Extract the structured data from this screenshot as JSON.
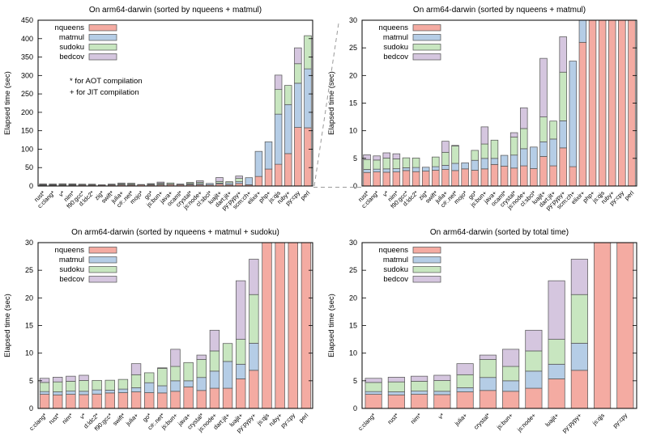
{
  "figure": {
    "ylabel": "Elapsed time (sec)",
    "note_line1": "* for AOT compilation",
    "note_line2": "+ for JIT compilation",
    "colors": {
      "nqueens": "#f4aba2",
      "matmul": "#b5cde6",
      "sudoku": "#c8e6c0",
      "bedcov": "#d5c6df",
      "bar_border": "#5a5a5a",
      "axis": "#000000",
      "connector": "#9a9a9a"
    }
  },
  "chart_data": [
    {
      "type": "bar",
      "stacked": true,
      "title": "On arm64-darwin (sorted by nqueens + matmul)",
      "ylabel": "Elapsed time (sec)",
      "ylim": [
        0,
        450
      ],
      "ytick_step": 50,
      "grid": false,
      "legend_position": "top-left",
      "show_note": true,
      "categories": [
        "rust*",
        "c:clang*",
        "v*",
        "nim*",
        "f90:gcc*",
        "d:ldc2*",
        "zig*",
        "swift*",
        "julia+",
        "c#:.net*",
        "mojo*",
        "go*",
        "js:bun+",
        "java+",
        "ocaml*",
        "crystal*",
        "js:node+",
        "cl:sbcl*",
        "luajit+",
        "dart:jit+",
        "py:pypy+",
        "scm:ch+",
        "elixir+",
        "php+",
        "js:qjs",
        "ruby+",
        "py:cpy",
        "perl"
      ],
      "series": [
        {
          "name": "nqueens",
          "values": [
            2.45,
            2.55,
            2.5,
            2.55,
            2.8,
            2.6,
            2.7,
            2.85,
            3.0,
            2.8,
            3.1,
            2.85,
            3.1,
            3.9,
            3.6,
            3.25,
            3.65,
            3.15,
            5.35,
            3.65,
            6.9,
            3.5,
            26,
            46,
            59,
            88,
            159,
            158
          ]
        },
        {
          "name": "matmul",
          "values": [
            0.55,
            0.5,
            0.6,
            0.58,
            0.5,
            0.75,
            0.7,
            0.65,
            0.75,
            1.3,
            1.1,
            1.8,
            1.9,
            1.1,
            1.95,
            2.35,
            3.1,
            3.9,
            2.65,
            4.85,
            4.9,
            19.1,
            68,
            74,
            136,
            133,
            120,
            160
          ]
        },
        {
          "name": "sudoku",
          "values": [
            1.8,
            1.65,
            1.95,
            1.78,
            1.8,
            1.72,
            0,
            1.75,
            2.35,
            3.15,
            0,
            1.8,
            2.6,
            3.3,
            0,
            3.25,
            3.65,
            0,
            4.5,
            3.25,
            8.8,
            0,
            0,
            0,
            67,
            52,
            53,
            90
          ]
        },
        {
          "name": "bedcov",
          "values": [
            0.85,
            0.75,
            0.95,
            0.92,
            0,
            0,
            0,
            0,
            2.0,
            0.1,
            0,
            0,
            3.1,
            0,
            0,
            0.8,
            3.75,
            0,
            10.6,
            0,
            6.4,
            0,
            0,
            0,
            39,
            0,
            43,
            0
          ]
        }
      ]
    },
    {
      "type": "bar",
      "stacked": true,
      "title": "On arm64-darwin (sorted by nqueens + matmul)",
      "ylabel": "Elapsed time (sec)",
      "ylim": [
        0,
        30
      ],
      "ytick_step": 5,
      "grid": false,
      "legend_position": "top-left",
      "show_note": false,
      "categories": [
        "rust*",
        "c:clang*",
        "v*",
        "nim*",
        "f90:gcc*",
        "d:ldc2*",
        "zig*",
        "swift*",
        "julia+",
        "c#:.net*",
        "mojo*",
        "go*",
        "js:bun+",
        "java+",
        "ocaml*",
        "crystal*",
        "js:node+",
        "cl:sbcl*",
        "luajit+",
        "dart:jit+",
        "py:pypy+",
        "scm:ch+",
        "elixir+",
        "php+",
        "js:qjs",
        "ruby+",
        "py:cpy",
        "perl"
      ],
      "series": [
        {
          "name": "nqueens",
          "values": [
            2.45,
            2.55,
            2.5,
            2.55,
            2.8,
            2.6,
            2.7,
            2.85,
            3.0,
            2.8,
            3.1,
            2.85,
            3.1,
            3.9,
            3.6,
            3.25,
            3.65,
            3.15,
            5.35,
            3.65,
            6.9,
            3.5,
            26,
            46,
            59,
            88,
            159,
            158
          ]
        },
        {
          "name": "matmul",
          "values": [
            0.55,
            0.5,
            0.6,
            0.58,
            0.5,
            0.75,
            0.7,
            0.65,
            0.75,
            1.3,
            1.1,
            1.8,
            1.9,
            1.1,
            1.95,
            2.35,
            3.1,
            3.9,
            2.65,
            4.85,
            4.9,
            19.1,
            68,
            74,
            136,
            133,
            120,
            160
          ]
        },
        {
          "name": "sudoku",
          "values": [
            1.8,
            1.65,
            1.95,
            1.78,
            1.8,
            1.72,
            0,
            1.75,
            2.35,
            3.15,
            0,
            1.8,
            2.6,
            3.3,
            0,
            3.25,
            3.65,
            0,
            4.5,
            3.25,
            8.8,
            0,
            0,
            0,
            67,
            52,
            53,
            90
          ]
        },
        {
          "name": "bedcov",
          "values": [
            0.85,
            0.75,
            0.95,
            0.92,
            0,
            0,
            0,
            0,
            2.0,
            0.1,
            0,
            0,
            3.1,
            0,
            0,
            0.8,
            3.75,
            0,
            10.6,
            0,
            6.4,
            0,
            0,
            0,
            39,
            0,
            43,
            0
          ]
        }
      ]
    },
    {
      "type": "bar",
      "stacked": true,
      "title": "On arm64-darwin (sorted by nqueens + matmul + sudoku)",
      "ylabel": "Elapsed time (sec)",
      "ylim": [
        0,
        30
      ],
      "ytick_step": 5,
      "grid": false,
      "legend_position": "top-left",
      "show_note": false,
      "categories": [
        "c:clang*",
        "rust*",
        "nim*",
        "v*",
        "d:ldc2*",
        "f90:gcc*",
        "swift*",
        "julia+",
        "go*",
        "c#:.net*",
        "js:bun+",
        "java+",
        "crystal*",
        "js:node+",
        "dart:jit+",
        "luajit+",
        "py:pypy+",
        "js:qjs",
        "ruby+",
        "py:cpy",
        "perl"
      ],
      "series": [
        {
          "name": "nqueens",
          "values": [
            2.55,
            2.45,
            2.55,
            2.5,
            2.6,
            2.8,
            2.85,
            3.0,
            2.85,
            2.8,
            3.1,
            3.9,
            3.25,
            3.65,
            3.65,
            5.35,
            6.9,
            59,
            88,
            159,
            158
          ]
        },
        {
          "name": "matmul",
          "values": [
            0.5,
            0.55,
            0.58,
            0.6,
            0.75,
            0.5,
            0.65,
            0.75,
            1.8,
            1.3,
            1.9,
            1.1,
            2.35,
            3.1,
            4.85,
            2.65,
            4.9,
            136,
            133,
            120,
            160
          ]
        },
        {
          "name": "sudoku",
          "values": [
            1.65,
            1.8,
            1.78,
            1.95,
            1.72,
            1.8,
            1.75,
            2.35,
            1.8,
            3.15,
            2.6,
            3.3,
            3.25,
            3.65,
            3.25,
            4.5,
            8.8,
            67,
            52,
            53,
            90
          ]
        },
        {
          "name": "bedcov",
          "values": [
            0.75,
            0.85,
            0.92,
            0.95,
            0,
            0,
            0,
            2.0,
            0,
            0.1,
            3.1,
            0,
            0.8,
            3.75,
            0,
            10.6,
            6.4,
            39,
            0,
            43,
            0
          ]
        }
      ]
    },
    {
      "type": "bar",
      "stacked": true,
      "title": "On arm64-darwin (sorted by total time)",
      "ylabel": "Elapsed time (sec)",
      "ylim": [
        0,
        30
      ],
      "ytick_step": 5,
      "grid": false,
      "legend_position": "top-left",
      "show_note": false,
      "categories": [
        "c:clang*",
        "rust*",
        "nim*",
        "v*",
        "julia+",
        "crystal*",
        "js:bun+",
        "js:node+",
        "luajit+",
        "py:pypy+",
        "js:qjs",
        "py:cpy"
      ],
      "series": [
        {
          "name": "nqueens",
          "values": [
            2.55,
            2.45,
            2.55,
            2.5,
            3.0,
            3.25,
            3.1,
            3.65,
            5.35,
            6.9,
            59,
            159
          ]
        },
        {
          "name": "matmul",
          "values": [
            0.5,
            0.55,
            0.58,
            0.6,
            0.75,
            2.35,
            1.9,
            3.1,
            2.65,
            4.9,
            136,
            120
          ]
        },
        {
          "name": "sudoku",
          "values": [
            1.65,
            1.8,
            1.78,
            1.95,
            2.35,
            3.25,
            2.6,
            3.65,
            4.5,
            8.8,
            67,
            53
          ]
        },
        {
          "name": "bedcov",
          "values": [
            0.75,
            0.85,
            0.92,
            0.95,
            2.0,
            0.8,
            3.1,
            3.75,
            10.6,
            6.4,
            39,
            43
          ]
        }
      ]
    }
  ]
}
